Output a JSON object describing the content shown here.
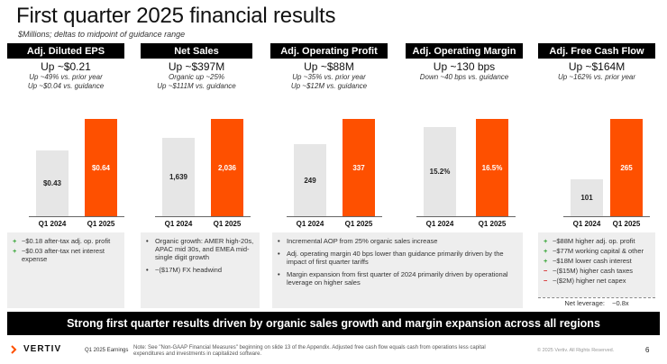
{
  "title": "First quarter 2025 financial results",
  "subtitle": "$Millions; deltas to midpoint of guidance range",
  "panels": [
    {
      "header": "Adj. Diluted EPS",
      "headline": "Up ~$0.21",
      "sub1": "Up ~49% vs. prior year",
      "sub2": "Up ~$0.04 vs. guidance",
      "prior_label": "$0.43",
      "current_label": "$0.64",
      "x_prior": "Q1 2024",
      "x_current": "Q1 2025"
    },
    {
      "header": "Net Sales",
      "headline": "Up ~$397M",
      "sub1": "Organic up ~25%",
      "sub2": "Up ~$111M vs. guidance",
      "prior_label": "1,639",
      "current_label": "2,036",
      "x_prior": "Q1 2024",
      "x_current": "Q1 2025"
    },
    {
      "header": "Adj. Operating Profit",
      "headline": "Up ~$88M",
      "sub1": "Up ~35% vs. prior year",
      "sub2": "Up ~$12M vs. guidance",
      "prior_label": "249",
      "current_label": "337",
      "x_prior": "Q1 2024",
      "x_current": "Q1 2025"
    },
    {
      "header": "Adj. Operating Margin",
      "headline": "Up ~130 bps",
      "sub1": "Down ~40 bps vs. guidance",
      "sub2": "",
      "prior_label": "15.2%",
      "current_label": "16.5%",
      "x_prior": "Q1 2024",
      "x_current": "Q1 2025"
    },
    {
      "header": "Adj. Free Cash Flow",
      "headline": "Up ~$164M",
      "sub1": "Up ~162% vs. prior year",
      "sub2": "",
      "prior_label": "101",
      "current_label": "265",
      "x_prior": "Q1 2024",
      "x_current": "Q1 2025"
    }
  ],
  "chart_data": [
    {
      "type": "bar",
      "title": "Adj. Diluted EPS",
      "categories": [
        "Q1 2024",
        "Q1 2025"
      ],
      "values": [
        0.43,
        0.64
      ]
    },
    {
      "type": "bar",
      "title": "Net Sales",
      "categories": [
        "Q1 2024",
        "Q1 2025"
      ],
      "values": [
        1639,
        2036
      ]
    },
    {
      "type": "bar",
      "title": "Adj. Operating Profit",
      "categories": [
        "Q1 2024",
        "Q1 2025"
      ],
      "values": [
        249,
        337
      ]
    },
    {
      "type": "bar",
      "title": "Adj. Operating Margin",
      "categories": [
        "Q1 2024",
        "Q1 2025"
      ],
      "values": [
        15.2,
        16.5
      ]
    },
    {
      "type": "bar",
      "title": "Adj. Free Cash Flow",
      "categories": [
        "Q1 2024",
        "Q1 2025"
      ],
      "values": [
        101,
        265
      ]
    }
  ],
  "notes": {
    "eps": [
      {
        "mark": "+",
        "text": "~$0.18 after-tax adj. op. profit"
      },
      {
        "mark": "+",
        "text": "~$0.03 after-tax net interest expense"
      }
    ],
    "sales": [
      {
        "mark": "•",
        "text": "Organic growth: AMER high-20s, APAC mid 30s, and EMEA mid-single digit growth"
      },
      {
        "mark": "•",
        "text": "~($17M) FX headwind"
      }
    ],
    "ops": [
      {
        "mark": "•",
        "text": "Incremental AOP from 25% organic sales increase"
      },
      {
        "mark": "•",
        "text": "Adj. operating margin 40 bps lower than guidance primarily driven by the impact of first quarter tariffs"
      },
      {
        "mark": "•",
        "text": "Margin expansion from first quarter of 2024 primarily driven by operational leverage on higher sales"
      }
    ],
    "fcf": [
      {
        "mark": "+",
        "text": "~$88M higher adj. op. profit"
      },
      {
        "mark": "+",
        "text": "~$77M working capital & other"
      },
      {
        "mark": "+",
        "text": "~$18M lower cash interest"
      },
      {
        "mark": "−",
        "text": "~($15M) higher cash taxes"
      },
      {
        "mark": "−",
        "text": "~($2M) higher net capex"
      }
    ],
    "leverage_label": "Net leverage:",
    "leverage_value": "~0.8x"
  },
  "banner": "Strong first quarter results driven by organic sales growth and margin expansion across all regions",
  "footer": {
    "logo_text": "VERTIV",
    "presentation": "Q1 2025 Earnings",
    "footnote": "Note: See \"Non-GAAP Financial Measures\" beginning on slide 13 of the Appendix.  Adjusted free cash flow equals cash from operations less capital expenditures and investments in capitalized software.",
    "copyright": "© 2025 Vertiv. All Rights Reserved.",
    "page": "6"
  },
  "colors": {
    "accent": "#fe5000",
    "prior": "#e6e6e6",
    "header": "#000000"
  }
}
